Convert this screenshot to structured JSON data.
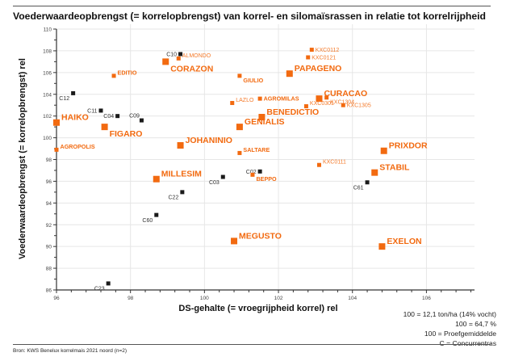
{
  "chart_data": {
    "type": "scatter",
    "title": "Voederwaardeopbrengst (= korrelopbrengst) van korrel- en silomaïsrassen in relatie tot korrelrijpheid",
    "xlabel": "DS-gehalte (= vroegrijpheid korrel) rel",
    "ylabel": "Voederwaardeopbrengst (= korrelopbrengst) rel",
    "xlim": [
      96,
      107.3
    ],
    "ylim": [
      86,
      110
    ],
    "xticks": [
      "96",
      "98",
      "100",
      "102",
      "104",
      "106"
    ],
    "yticks": [
      "86",
      "88",
      "90",
      "92",
      "94",
      "96",
      "98",
      "100",
      "102",
      "104",
      "106",
      "108",
      "110"
    ],
    "grid": true,
    "colors": {
      "kws_large": "#f26a10",
      "kws_small": "#f47a2a",
      "competitor": "#1a1a1a",
      "grid": "#e6e6e6",
      "axis": "#333333"
    },
    "points": [
      {
        "name": "CORAZON",
        "x": 98.95,
        "y": 107.0,
        "group": "large",
        "label_pos": "right-below"
      },
      {
        "name": "ALMONDO",
        "x": 99.3,
        "y": 107.3,
        "group": "small",
        "label_pos": "right-above"
      },
      {
        "name": "C10",
        "x": 99.35,
        "y": 107.7,
        "group": "competitor",
        "label_pos": "left"
      },
      {
        "name": "EDITIO",
        "x": 97.55,
        "y": 105.7,
        "group": "small-bold",
        "label_pos": "right-above"
      },
      {
        "name": "C12",
        "x": 96.45,
        "y": 104.1,
        "group": "competitor",
        "label_pos": "left-below"
      },
      {
        "name": "C11",
        "x": 97.2,
        "y": 102.5,
        "group": "competitor",
        "label_pos": "left"
      },
      {
        "name": "C04",
        "x": 97.65,
        "y": 102.0,
        "group": "competitor",
        "label_pos": "left"
      },
      {
        "name": "C09",
        "x": 98.3,
        "y": 101.6,
        "group": "competitor",
        "label_pos": "left-above"
      },
      {
        "name": "HAIKO",
        "x": 96.0,
        "y": 101.4,
        "group": "large",
        "label_pos": "right-above"
      },
      {
        "name": "FIGARO",
        "x": 97.3,
        "y": 101.0,
        "group": "large",
        "label_pos": "right-below"
      },
      {
        "name": "AGROPOLIS",
        "x": 96.0,
        "y": 98.9,
        "group": "small-bold",
        "label_pos": "right-above"
      },
      {
        "name": "JOHANINIO",
        "x": 99.35,
        "y": 99.3,
        "group": "large",
        "label_pos": "right-above"
      },
      {
        "name": "MILLESIM",
        "x": 98.7,
        "y": 96.2,
        "group": "large",
        "label_pos": "right-above"
      },
      {
        "name": "C22",
        "x": 99.4,
        "y": 95.0,
        "group": "competitor",
        "label_pos": "left-below"
      },
      {
        "name": "C60",
        "x": 98.7,
        "y": 92.9,
        "group": "competitor",
        "label_pos": "left-below"
      },
      {
        "name": "C23",
        "x": 97.4,
        "y": 86.6,
        "group": "competitor",
        "label_pos": "left-below"
      },
      {
        "name": "GIULIO",
        "x": 100.95,
        "y": 105.7,
        "group": "small-bold",
        "label_pos": "right-below"
      },
      {
        "name": "PAPAGENO",
        "x": 102.3,
        "y": 105.9,
        "group": "large",
        "label_pos": "right-above"
      },
      {
        "name": "KXC0112",
        "x": 102.9,
        "y": 108.1,
        "group": "small",
        "label_pos": "right"
      },
      {
        "name": "KXC0121",
        "x": 102.8,
        "y": 107.4,
        "group": "small",
        "label_pos": "right"
      },
      {
        "name": "LAZLO",
        "x": 100.75,
        "y": 103.2,
        "group": "small",
        "label_pos": "right-above"
      },
      {
        "name": "AGROMILAS",
        "x": 101.5,
        "y": 103.6,
        "group": "small-bold",
        "label_pos": "right"
      },
      {
        "name": "CURACAO",
        "x": 103.1,
        "y": 103.6,
        "group": "large",
        "label_pos": "right-above"
      },
      {
        "name": "KXC1304",
        "x": 103.3,
        "y": 103.7,
        "group": "small",
        "label_pos": "right-below"
      },
      {
        "name": "KXC0301",
        "x": 102.75,
        "y": 102.9,
        "group": "small",
        "label_pos": "right-above"
      },
      {
        "name": "KXC1305",
        "x": 103.75,
        "y": 103.0,
        "group": "small",
        "label_pos": "right"
      },
      {
        "name": "BENEDICTIO",
        "x": 101.55,
        "y": 101.9,
        "group": "large",
        "label_pos": "right-above"
      },
      {
        "name": "GENIALIS",
        "x": 100.95,
        "y": 101.0,
        "group": "large",
        "label_pos": "right-above"
      },
      {
        "name": "SALTARE",
        "x": 100.95,
        "y": 98.6,
        "group": "small-bold",
        "label_pos": "right-above"
      },
      {
        "name": "C02",
        "x": 101.5,
        "y": 96.9,
        "group": "competitor",
        "label_pos": "left"
      },
      {
        "name": "BEPPO",
        "x": 101.3,
        "y": 96.6,
        "group": "small-bold",
        "label_pos": "right-below"
      },
      {
        "name": "C03",
        "x": 100.5,
        "y": 96.4,
        "group": "competitor",
        "label_pos": "left-below"
      },
      {
        "name": "KXC0111",
        "x": 103.1,
        "y": 97.5,
        "group": "small",
        "label_pos": "right-above"
      },
      {
        "name": "PRIXDOR",
        "x": 104.85,
        "y": 98.8,
        "group": "large",
        "label_pos": "right-above"
      },
      {
        "name": "STABIL",
        "x": 104.6,
        "y": 96.8,
        "group": "large",
        "label_pos": "right-above"
      },
      {
        "name": "C61",
        "x": 104.4,
        "y": 95.9,
        "group": "competitor",
        "label_pos": "left-below"
      },
      {
        "name": "MEGUSTO",
        "x": 100.8,
        "y": 90.5,
        "group": "large",
        "label_pos": "right-above"
      },
      {
        "name": "EXELON",
        "x": 104.8,
        "y": 90.0,
        "group": "large",
        "label_pos": "right-above"
      }
    ],
    "annotations": [
      "100 = 12,1 ton/ha (14% vocht)",
      "100 = 64,7 %",
      "100 = Proefgemiddelde",
      "C = Concurrentras"
    ],
    "source": "Bron: KWS Benelux korrelmais 2021 noord (n=2)"
  }
}
